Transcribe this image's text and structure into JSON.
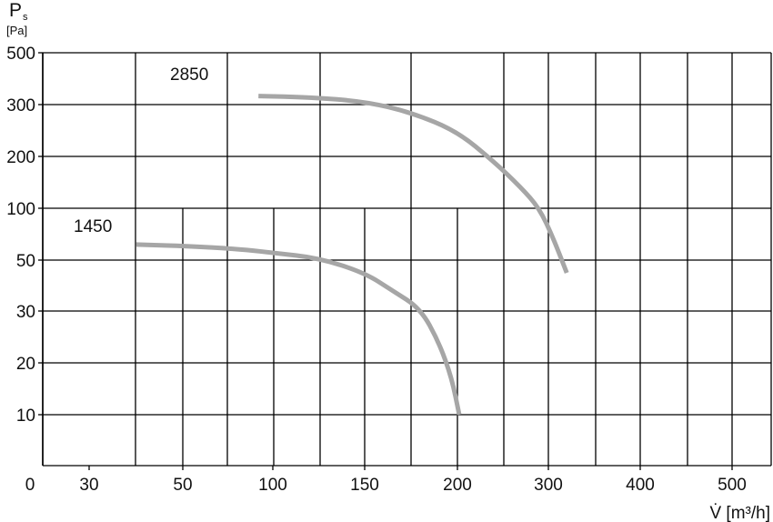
{
  "chart_data": {
    "type": "line",
    "y_axis": {
      "symbol": "P",
      "subscript": "s",
      "unit": "[Pa]",
      "tick_labels": [
        "500",
        "300",
        "200",
        "100",
        "50",
        "30",
        "20",
        "10"
      ]
    },
    "x_axis": {
      "label": "V̇ [m³/h]",
      "origin_label": "0",
      "tick_labels": [
        "30",
        "50",
        "100",
        "150",
        "200",
        "300",
        "400",
        "500"
      ]
    },
    "grid": true,
    "series": [
      {
        "name": "2850",
        "color": "#a6a6a6",
        "points": [
          [
            92,
            333
          ],
          [
            120,
            328
          ],
          [
            150,
            312
          ],
          [
            175,
            285
          ],
          [
            200,
            248
          ],
          [
            240,
            190
          ],
          [
            270,
            140
          ],
          [
            290,
            100
          ],
          [
            305,
            72
          ],
          [
            320,
            45
          ]
        ]
      },
      {
        "name": "1450",
        "color": "#a6a6a6",
        "points": [
          [
            40,
            65
          ],
          [
            60,
            63
          ],
          [
            85,
            60
          ],
          [
            100,
            57
          ],
          [
            125,
            52
          ],
          [
            150,
            45
          ],
          [
            165,
            38
          ],
          [
            180,
            31
          ],
          [
            190,
            24
          ],
          [
            197,
            17
          ],
          [
            202,
            10
          ]
        ]
      }
    ]
  }
}
